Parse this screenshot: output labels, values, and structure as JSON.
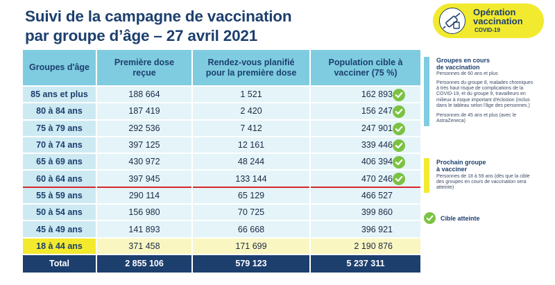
{
  "title": {
    "line1": "Suivi de la campagne de vaccination",
    "line2": "par groupe d’âge – 27 avril 2021"
  },
  "badge": {
    "line1": "Opération",
    "line2": "vaccination",
    "line3": "COVID-19",
    "color": "#f2ea2f"
  },
  "table": {
    "headers": [
      "Groupes d'âge",
      "Première dose reçue",
      "Rendez-vous planifié pour la première dose",
      "Population cible à vacciner (75 %)"
    ],
    "rows": [
      {
        "group": "85 ans et plus",
        "first_dose": "188 664",
        "appointments": "1 521",
        "target": "162 893",
        "reached": true
      },
      {
        "group": "80 à 84 ans",
        "first_dose": "187 419",
        "appointments": "2 420",
        "target": "156 247",
        "reached": true
      },
      {
        "group": "75 à 79 ans",
        "first_dose": "292 536",
        "appointments": "7 412",
        "target": "247 901",
        "reached": true
      },
      {
        "group": "70 à 74 ans",
        "first_dose": "397 125",
        "appointments": "12 161",
        "target": "339 446",
        "reached": true
      },
      {
        "group": "65 à 69 ans",
        "first_dose": "430 972",
        "appointments": "48 244",
        "target": "406 394",
        "reached": true
      },
      {
        "group": "60 à 64 ans",
        "first_dose": "397 945",
        "appointments": "133 144",
        "target": "470 246",
        "reached": true
      },
      {
        "group": "55 à 59 ans",
        "first_dose": "290 114",
        "appointments": "65 129",
        "target": "466 527",
        "reached": false
      },
      {
        "group": "50 à 54 ans",
        "first_dose": "156 980",
        "appointments": "70 725",
        "target": "399 860",
        "reached": false
      },
      {
        "group": "45 à 49 ans",
        "first_dose": "141 893",
        "appointments": "66 668",
        "target": "396 921",
        "reached": false
      },
      {
        "group": "18 à 44 ans",
        "first_dose": "371 458",
        "appointments": "171 699",
        "target": "2 190 876",
        "reached": false
      }
    ],
    "total": {
      "label": "Total",
      "first_dose": "2 855 106",
      "appointments": "579 123",
      "target": "5 237 311"
    }
  },
  "legend": {
    "current": {
      "title_line1": "Groupes en cours",
      "title_line2": "de vaccination",
      "text1": "Personnes de 60 ans et plus",
      "text2_lines": [
        "Personnes du groupe 8, malades chroniques",
        "à très haut risque de complications de la",
        "COVID-19, et du groupe 9, travailleurs en",
        "milieux à risque important d'éclosion (inclus",
        "dans le tableau selon l'âge des personnes.)"
      ],
      "text3_lines": [
        "Personnes de 45 ans et plus (avec le",
        "AstraZeneca)"
      ],
      "color": "#7fcce0"
    },
    "next": {
      "title_line1": "Prochain groupe",
      "title_line2": "à vacciner",
      "text_lines": [
        "Personnes de 18 à 59 ans (dès que la cible",
        "des groupes en cours de vaccination sera",
        "atteinte)"
      ],
      "color": "#f3ea2e"
    },
    "target_reached": {
      "label": "Cible atteinte",
      "icon": "check-circle-icon",
      "color": "#7cc242"
    }
  }
}
